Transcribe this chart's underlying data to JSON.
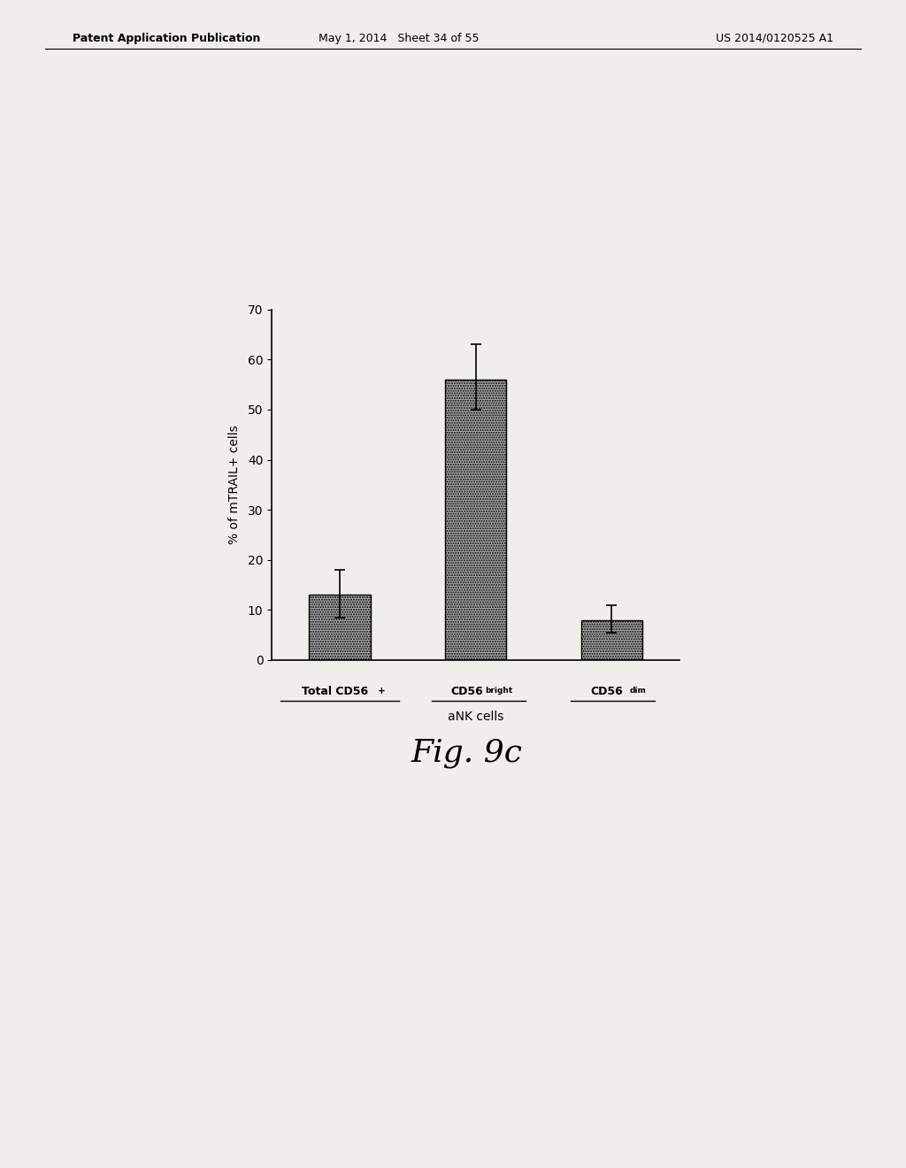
{
  "categories": [
    "Total CD56+",
    "CD56bright",
    "CD56dim"
  ],
  "values": [
    13.0,
    56.0,
    8.0
  ],
  "errors_upper": [
    5.0,
    7.0,
    3.0
  ],
  "errors_lower": [
    4.5,
    6.0,
    2.5
  ],
  "bar_color": "#aaaaaa",
  "bar_edgecolor": "#000000",
  "ylabel": "% of mTRAIL+ cells",
  "xlabel": "aNK cells",
  "ylim": [
    0,
    70
  ],
  "yticks": [
    0,
    10,
    20,
    30,
    40,
    50,
    60,
    70
  ],
  "fig_caption": "Fig. 9c",
  "header_left": "Patent Application Publication",
  "header_center": "May 1, 2014   Sheet 34 of 55",
  "header_right": "US 2014/0120525 A1",
  "background_color": "#f0eeea"
}
